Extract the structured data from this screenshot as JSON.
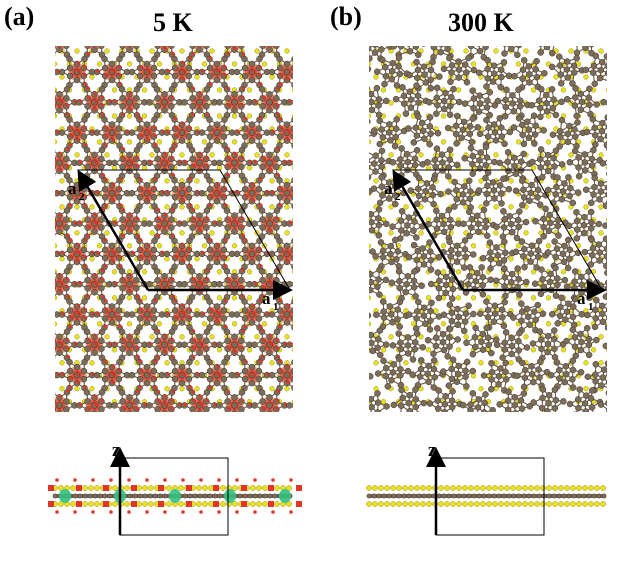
{
  "figure": {
    "panel_a": {
      "label": "(a)",
      "temperature": "5 K"
    },
    "panel_b": {
      "label": "(b)",
      "temperature": "300 K"
    },
    "vectors": {
      "a1_main": "a",
      "a1_sub": "1",
      "a2_main": "a",
      "a2_sub": "2"
    },
    "side_axis": "z"
  },
  "colors": {
    "sulfur": "#e8e020",
    "metal": "#7b6d59",
    "bond": "#6b5a48",
    "cdw_density": "#e0362a",
    "green": "#33c080"
  }
}
